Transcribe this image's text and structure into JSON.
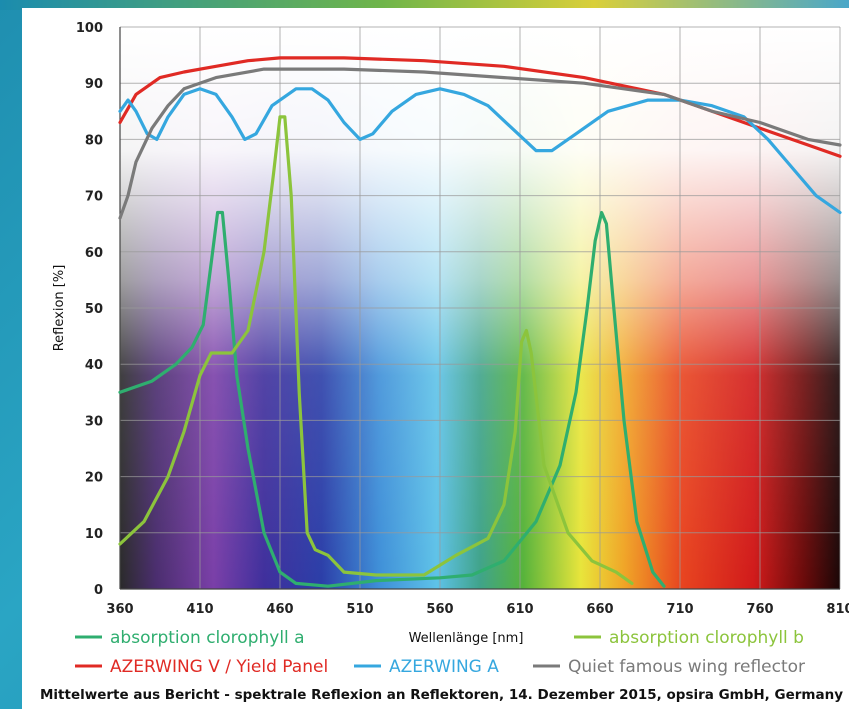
{
  "chart_data": {
    "type": "line",
    "ylabel": "Reflexion [%]",
    "xlabel": "Wellenlänge [nm]",
    "xlim": [
      360,
      810
    ],
    "ylim": [
      0,
      100
    ],
    "x_ticks": [
      360,
      410,
      460,
      510,
      560,
      610,
      660,
      710,
      760,
      810
    ],
    "y_ticks": [
      0,
      10,
      20,
      30,
      40,
      50,
      60,
      70,
      80,
      90,
      100
    ],
    "grid": true,
    "background": "visible light spectrum gradient",
    "legend_position": "bottom",
    "footer": "Mittelwerte aus Bericht - spektrale Reflexion an Reflektoren, 14. Dezember 2015, opsira GmbH, Germany",
    "series": [
      {
        "name": "absorption clorophyll a",
        "color": "#2fae6f",
        "points": [
          [
            360,
            35
          ],
          [
            380,
            37
          ],
          [
            395,
            40
          ],
          [
            405,
            43
          ],
          [
            412,
            47
          ],
          [
            417,
            58
          ],
          [
            421,
            67
          ],
          [
            424,
            67
          ],
          [
            428,
            55
          ],
          [
            433,
            38
          ],
          [
            440,
            25
          ],
          [
            450,
            10
          ],
          [
            460,
            3
          ],
          [
            470,
            1
          ],
          [
            490,
            0.5
          ],
          [
            520,
            1.5
          ],
          [
            560,
            2
          ],
          [
            580,
            2.5
          ],
          [
            600,
            5
          ],
          [
            620,
            12
          ],
          [
            635,
            22
          ],
          [
            645,
            35
          ],
          [
            652,
            50
          ],
          [
            657,
            62
          ],
          [
            661,
            67
          ],
          [
            664,
            65
          ],
          [
            668,
            52
          ],
          [
            675,
            30
          ],
          [
            683,
            12
          ],
          [
            693,
            3
          ],
          [
            700,
            0.5
          ]
        ]
      },
      {
        "name": "absorption clorophyll b",
        "color": "#8cc43c",
        "points": [
          [
            360,
            8
          ],
          [
            375,
            12
          ],
          [
            390,
            20
          ],
          [
            400,
            28
          ],
          [
            410,
            38
          ],
          [
            417,
            42
          ],
          [
            430,
            42
          ],
          [
            440,
            46
          ],
          [
            450,
            60
          ],
          [
            456,
            74
          ],
          [
            460,
            84
          ],
          [
            463,
            84
          ],
          [
            467,
            70
          ],
          [
            472,
            35
          ],
          [
            477,
            10
          ],
          [
            482,
            7
          ],
          [
            490,
            6
          ],
          [
            500,
            3
          ],
          [
            520,
            2.5
          ],
          [
            550,
            2.5
          ],
          [
            570,
            6
          ],
          [
            590,
            9
          ],
          [
            600,
            15
          ],
          [
            607,
            28
          ],
          [
            611,
            44
          ],
          [
            614,
            46
          ],
          [
            617,
            42
          ],
          [
            625,
            22
          ],
          [
            640,
            10
          ],
          [
            655,
            5
          ],
          [
            670,
            3
          ],
          [
            680,
            1
          ]
        ]
      },
      {
        "name": "AZERWING V / Yield Panel",
        "color": "#e02a24",
        "points": [
          [
            360,
            83
          ],
          [
            370,
            88
          ],
          [
            385,
            91
          ],
          [
            400,
            92
          ],
          [
            420,
            93
          ],
          [
            440,
            94
          ],
          [
            460,
            94.5
          ],
          [
            500,
            94.5
          ],
          [
            550,
            94
          ],
          [
            600,
            93
          ],
          [
            650,
            91
          ],
          [
            700,
            88
          ],
          [
            730,
            85
          ],
          [
            760,
            82
          ],
          [
            790,
            79
          ],
          [
            810,
            77
          ]
        ]
      },
      {
        "name": "AZERWING A",
        "color": "#35a7df",
        "points": [
          [
            360,
            85
          ],
          [
            365,
            87
          ],
          [
            370,
            85
          ],
          [
            377,
            81
          ],
          [
            383,
            80
          ],
          [
            390,
            84
          ],
          [
            400,
            88
          ],
          [
            410,
            89
          ],
          [
            420,
            88
          ],
          [
            430,
            84
          ],
          [
            438,
            80
          ],
          [
            445,
            81
          ],
          [
            455,
            86
          ],
          [
            470,
            89
          ],
          [
            480,
            89
          ],
          [
            490,
            87
          ],
          [
            500,
            83
          ],
          [
            510,
            80
          ],
          [
            518,
            81
          ],
          [
            530,
            85
          ],
          [
            545,
            88
          ],
          [
            560,
            89
          ],
          [
            575,
            88
          ],
          [
            590,
            86
          ],
          [
            605,
            82
          ],
          [
            620,
            78
          ],
          [
            630,
            78
          ],
          [
            645,
            81
          ],
          [
            665,
            85
          ],
          [
            690,
            87
          ],
          [
            710,
            87
          ],
          [
            730,
            86
          ],
          [
            750,
            84
          ],
          [
            765,
            80
          ],
          [
            780,
            75
          ],
          [
            795,
            70
          ],
          [
            810,
            67
          ]
        ]
      },
      {
        "name": "Quiet famous wing reflector",
        "color": "#7a7a7a",
        "points": [
          [
            360,
            66
          ],
          [
            365,
            70
          ],
          [
            370,
            76
          ],
          [
            380,
            82
          ],
          [
            390,
            86
          ],
          [
            400,
            89
          ],
          [
            420,
            91
          ],
          [
            450,
            92.5
          ],
          [
            500,
            92.5
          ],
          [
            550,
            92
          ],
          [
            600,
            91
          ],
          [
            650,
            90
          ],
          [
            700,
            88
          ],
          [
            730,
            85
          ],
          [
            760,
            83
          ],
          [
            790,
            80
          ],
          [
            810,
            79
          ]
        ]
      }
    ]
  }
}
